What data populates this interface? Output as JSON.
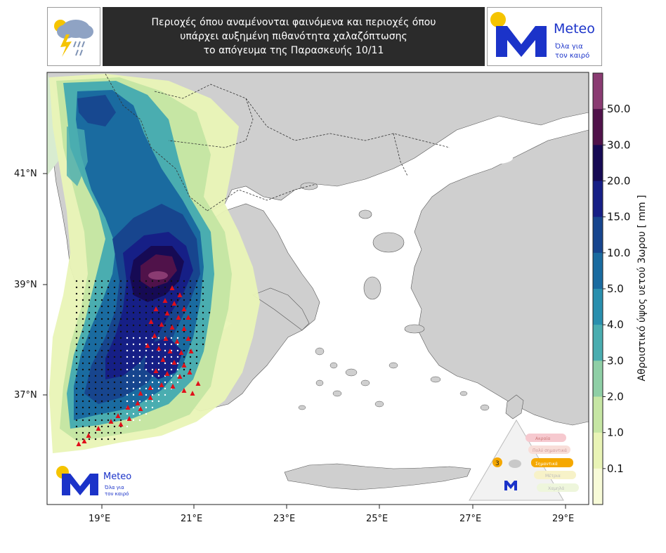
{
  "header": {
    "title_lines": [
      "Περιοχές όπου αναμένονται φαινόμενα και περιοχές όπου",
      "υπάρχει αυξημένη πιθανότητα χαλαζόπτωσης",
      "το απόγευμα της Παρασκευής 10/11"
    ],
    "icon": "thunderstorm-cloud-icon"
  },
  "logo": {
    "brand": "Meteo",
    "slogan_line1": "Όλα για",
    "slogan_line2": "τον καιρό",
    "brand_color": "#1b33c9",
    "sun_color": "#f5c400"
  },
  "map": {
    "lat_labels": [
      "41°N",
      "39°N",
      "37°N"
    ],
    "lon_labels": [
      "19°E",
      "21°E",
      "23°E",
      "25°E",
      "27°E",
      "29°E"
    ],
    "land_color": "#cfcfcf",
    "sea_color": "#ffffff",
    "hail_marker_color": "#e0101a",
    "hail_marker": "triangle-icon",
    "storm_dot_marker": "dot-icon",
    "risk_pyramid": {
      "current_level": "3",
      "levels": [
        "Ακραία",
        "Πολύ σημαντικά",
        "Σημαντικά",
        "Μέτρια",
        "Χαμηλά"
      ]
    }
  },
  "colorbar": {
    "title": "Αθροιστικό ύψος υετού 3ωρου [ mm ]",
    "labels": [
      "50.0",
      "30.0",
      "20.0",
      "15.0",
      "10.0",
      "5.0",
      "4.0",
      "3.0",
      "2.0",
      "1.0",
      "0.1"
    ],
    "colors": [
      "#8a3b72",
      "#50124a",
      "#160a54",
      "#161f86",
      "#17458e",
      "#1a6ba0",
      "#2a8fae",
      "#4aadb0",
      "#8fcfa6",
      "#c6e6a4",
      "#e9f4b6",
      "#f8fbd8"
    ]
  }
}
